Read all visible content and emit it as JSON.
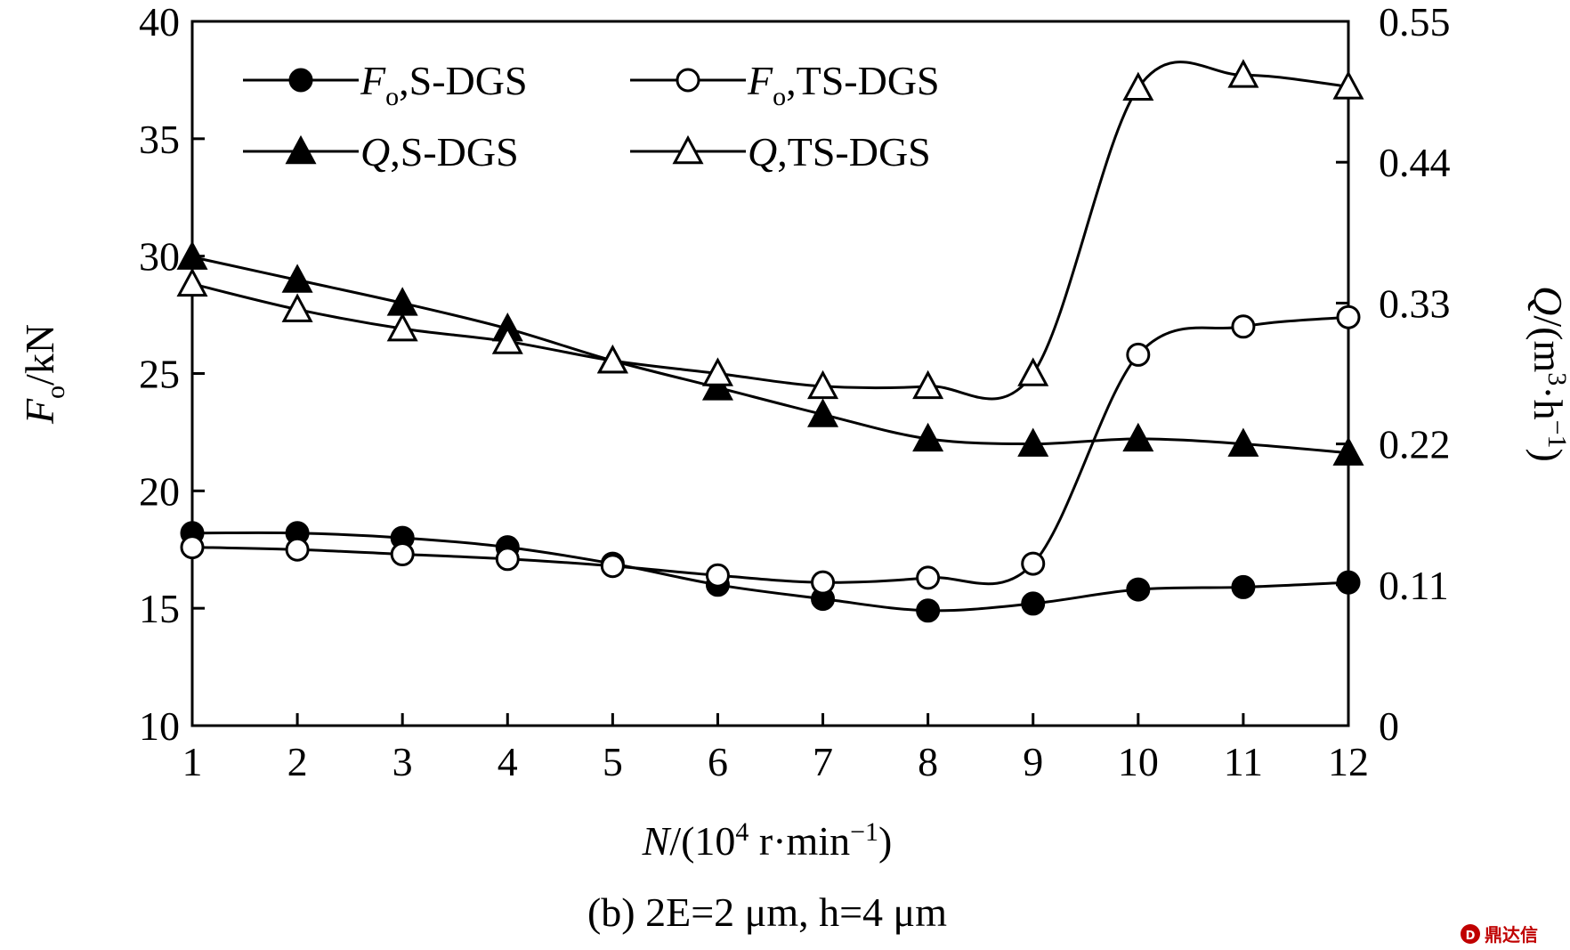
{
  "chart_data": {
    "type": "line",
    "caption": "(b) 2E=2 μm, h=4 μm",
    "x": [
      1,
      2,
      3,
      4,
      5,
      6,
      7,
      8,
      9,
      10,
      11,
      12
    ],
    "xlabel": {
      "sym": "N",
      "text": "/(10",
      "sup": "4",
      "text2": " r·min",
      "sup2": "−1",
      "text3": ")"
    },
    "ylabel_left": {
      "sym": "F",
      "sub": "o",
      "text": "/kN"
    },
    "ylabel_right": {
      "sym": "Q",
      "text": "/(m",
      "sup": "3",
      "text2": "·h",
      "sup2": "−1",
      "text3": ")"
    },
    "xlim": [
      1,
      12
    ],
    "ylim_left": [
      10,
      40
    ],
    "ylim_right": [
      0,
      0.55
    ],
    "x_ticks": [
      "1",
      "2",
      "3",
      "4",
      "5",
      "6",
      "7",
      "8",
      "9",
      "10",
      "11",
      "12"
    ],
    "y_left_ticks": [
      "10",
      "15",
      "20",
      "25",
      "30",
      "35",
      "40"
    ],
    "y_right_ticks": [
      "0",
      "0.11",
      "0.22",
      "0.33",
      "0.44",
      "0.55"
    ],
    "grid": false,
    "legend_position": "top",
    "series": [
      {
        "name": "Fo,S-DGS",
        "legend": {
          "sym": "F",
          "sub": "o",
          "text": ",S-DGS"
        },
        "axis": "left",
        "marker": "circle-filled",
        "values": [
          18.2,
          18.2,
          18.0,
          17.6,
          16.9,
          16.0,
          15.4,
          14.9,
          15.2,
          15.8,
          15.9,
          16.1
        ]
      },
      {
        "name": "Fo,TS-DGS",
        "legend": {
          "sym": "F",
          "sub": "o",
          "text": ",TS-DGS"
        },
        "axis": "left",
        "marker": "circle-open",
        "values": [
          17.6,
          17.5,
          17.3,
          17.1,
          16.8,
          16.4,
          16.1,
          16.3,
          16.9,
          25.8,
          27.0,
          27.4
        ]
      },
      {
        "name": "Q,S-DGS",
        "legend": {
          "sym": "Q",
          "sub": "",
          "text": ",S-DGS"
        },
        "axis": "right",
        "marker": "triangle-filled",
        "values": [
          0.366,
          0.348,
          0.33,
          0.31,
          0.285,
          0.264,
          0.243,
          0.224,
          0.22,
          0.224,
          0.22,
          0.213
        ]
      },
      {
        "name": "Q,TS-DGS",
        "legend": {
          "sym": "Q",
          "sub": "",
          "text": ",TS-DGS"
        },
        "axis": "right",
        "marker": "triangle-open",
        "values": [
          0.345,
          0.325,
          0.31,
          0.3,
          0.285,
          0.275,
          0.265,
          0.265,
          0.275,
          0.498,
          0.508,
          0.499
        ]
      }
    ]
  },
  "watermark": "鼎达信"
}
